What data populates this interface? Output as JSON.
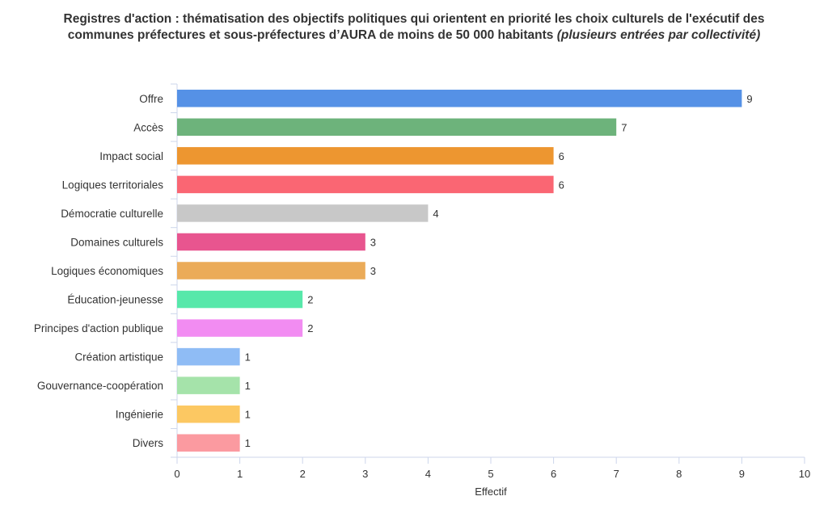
{
  "chart_data": {
    "type": "bar",
    "orientation": "horizontal",
    "title_main": "Registres d'action : thématisation des objectifs politiques qui orientent en priorité les choix culturels de l'exécutif des",
    "title_line2": "communes préfectures et sous-préfectures d’AURA de moins de 50 000 habitants",
    "title_note": "(plusieurs entrées par collectivité)",
    "xlabel": "Effectif",
    "ylabel": "",
    "xlim": [
      0,
      10
    ],
    "xticks": [
      "0",
      "1",
      "2",
      "3",
      "4",
      "5",
      "6",
      "7",
      "8",
      "9",
      "10"
    ],
    "grid": false,
    "categories": [
      "Offre",
      "Accès",
      "Impact social",
      "Logiques territoriales",
      "Démocratie culturelle",
      "Domaines culturels",
      "Logiques économiques",
      "Éducation-jeunesse",
      "Principes d'action publique",
      "Création artistique",
      "Gouvernance-coopération",
      "Ingénierie",
      "Divers"
    ],
    "values": [
      9,
      7,
      6,
      6,
      4,
      3,
      3,
      2,
      2,
      1,
      1,
      1,
      1
    ],
    "colors": [
      "#5591e6",
      "#6db37b",
      "#ed9630",
      "#fa6673",
      "#c8c8c8",
      "#e8558f",
      "#ebab58",
      "#57e8aa",
      "#f28cf2",
      "#8fbcf5",
      "#a5e3aa",
      "#fcc862",
      "#fb9aa0"
    ]
  }
}
